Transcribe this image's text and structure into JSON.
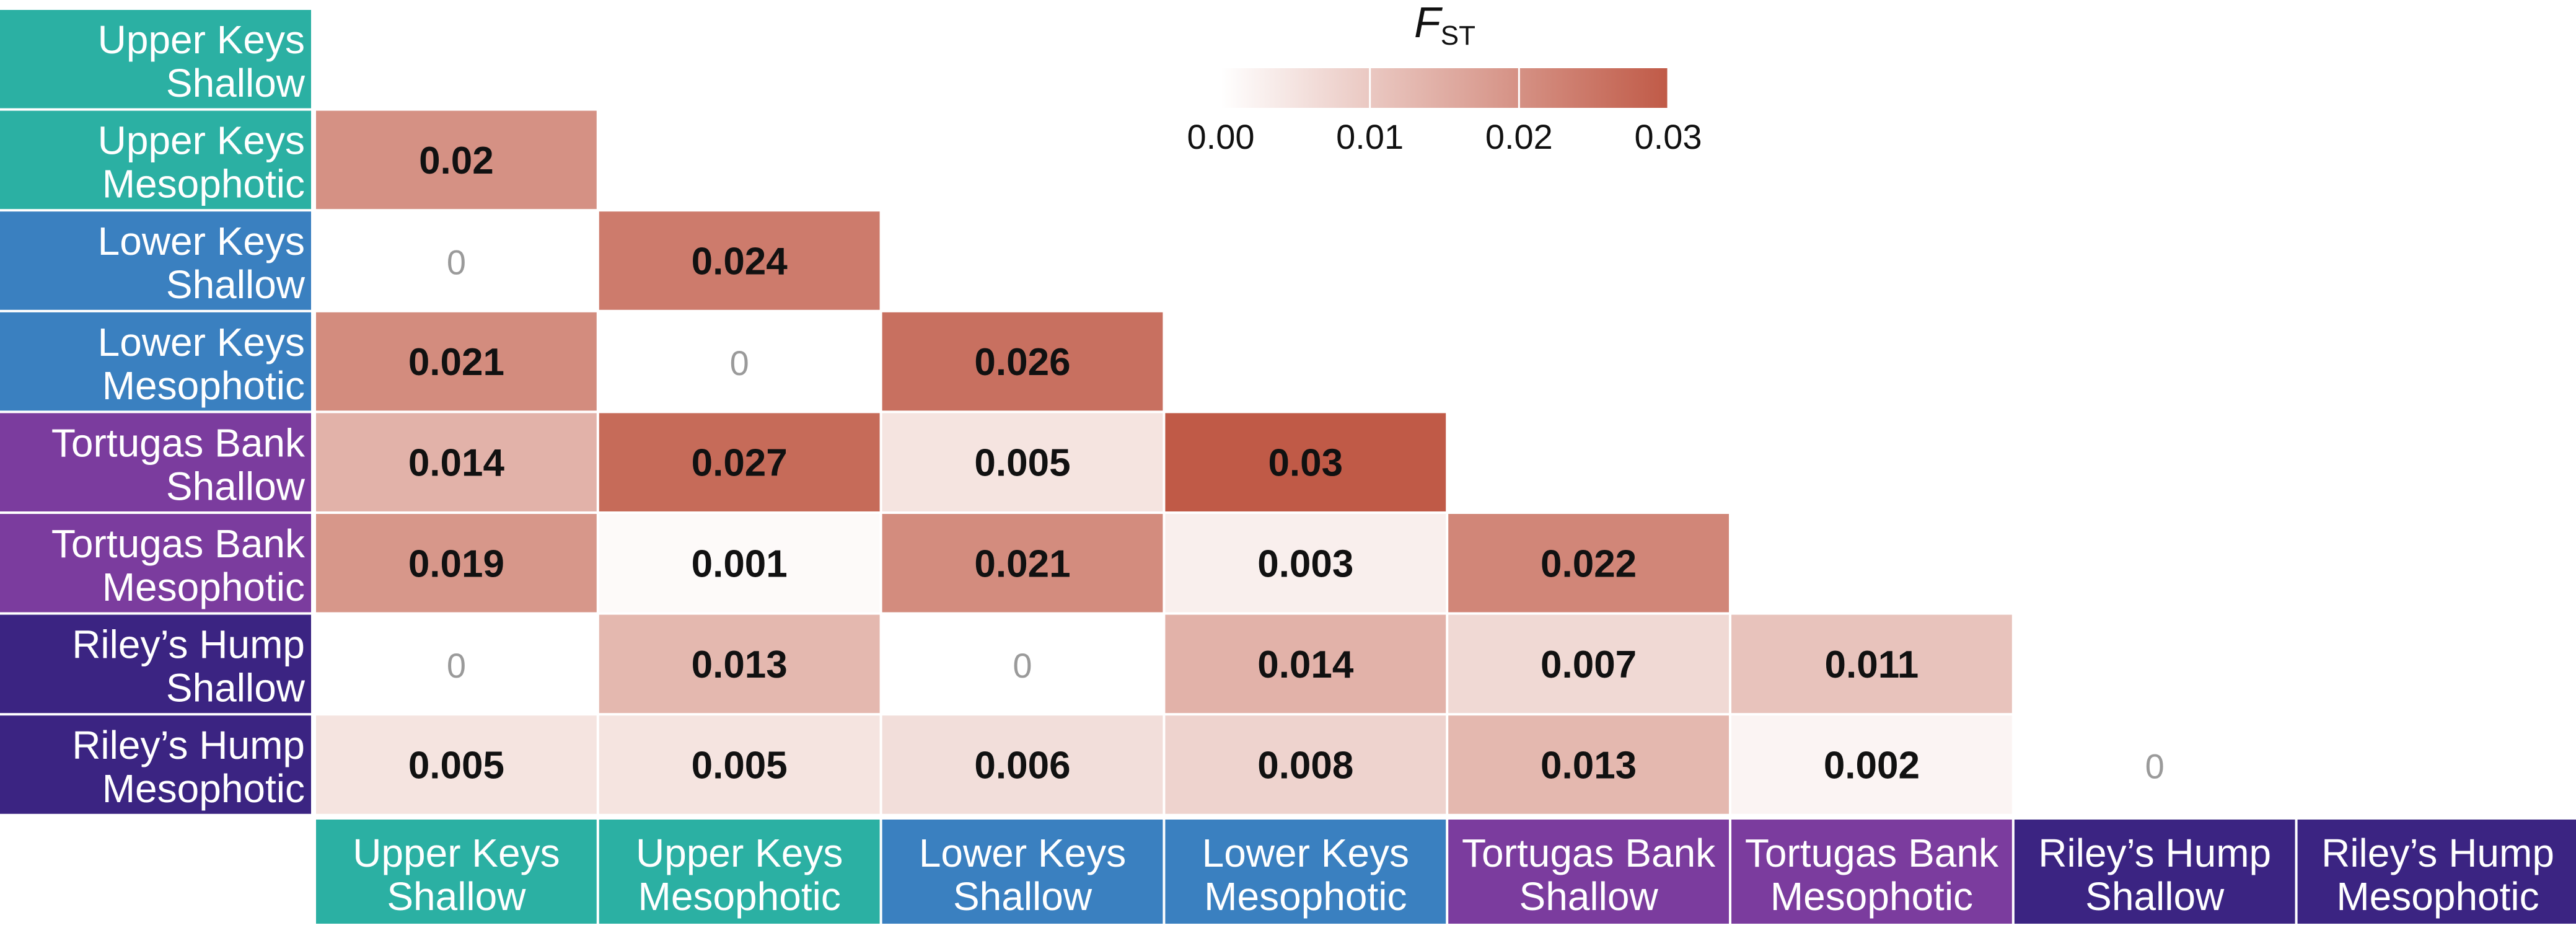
{
  "chart_data": {
    "type": "heatmap",
    "layout": "lower-triangle",
    "rows": [
      "Upper Keys Shallow",
      "Upper Keys Mesophotic",
      "Lower Keys Shallow",
      "Lower Keys Mesophotic",
      "Tortugas Bank Shallow",
      "Tortugas Bank Mesophotic",
      "Riley’s Hump Shallow",
      "Riley’s Hump Mesophotic"
    ],
    "columns": [
      "Upper Keys Shallow",
      "Upper Keys Mesophotic",
      "Lower Keys Shallow",
      "Lower Keys Mesophotic",
      "Tortugas Bank Shallow",
      "Tortugas Bank Mesophotic",
      "Riley’s Hump Shallow",
      "Riley’s Hump Mesophotic"
    ],
    "label_lines": [
      [
        "Upper Keys",
        "Shallow"
      ],
      [
        "Upper Keys",
        "Mesophotic"
      ],
      [
        "Lower Keys",
        "Shallow"
      ],
      [
        "Lower Keys",
        "Mesophotic"
      ],
      [
        "Tortugas Bank",
        "Shallow"
      ],
      [
        "Tortugas Bank",
        "Mesophotic"
      ],
      [
        "Riley’s Hump",
        "Shallow"
      ],
      [
        "Riley’s Hump",
        "Mesophotic"
      ]
    ],
    "cells": [
      {
        "row": 1,
        "col": 0,
        "label": "0.02",
        "value": 0.02
      },
      {
        "row": 2,
        "col": 0,
        "label": "0",
        "value": 0
      },
      {
        "row": 2,
        "col": 1,
        "label": "0.024",
        "value": 0.024
      },
      {
        "row": 3,
        "col": 0,
        "label": "0.021",
        "value": 0.021
      },
      {
        "row": 3,
        "col": 1,
        "label": "0",
        "value": 0
      },
      {
        "row": 3,
        "col": 2,
        "label": "0.026",
        "value": 0.026
      },
      {
        "row": 4,
        "col": 0,
        "label": "0.014",
        "value": 0.014
      },
      {
        "row": 4,
        "col": 1,
        "label": "0.027",
        "value": 0.027
      },
      {
        "row": 4,
        "col": 2,
        "label": "0.005",
        "value": 0.005
      },
      {
        "row": 4,
        "col": 3,
        "label": "0.03",
        "value": 0.03
      },
      {
        "row": 5,
        "col": 0,
        "label": "0.019",
        "value": 0.019
      },
      {
        "row": 5,
        "col": 1,
        "label": "0.001",
        "value": 0.001
      },
      {
        "row": 5,
        "col": 2,
        "label": "0.021",
        "value": 0.021
      },
      {
        "row": 5,
        "col": 3,
        "label": "0.003",
        "value": 0.003
      },
      {
        "row": 5,
        "col": 4,
        "label": "0.022",
        "value": 0.022
      },
      {
        "row": 6,
        "col": 0,
        "label": "0",
        "value": 0
      },
      {
        "row": 6,
        "col": 1,
        "label": "0.013",
        "value": 0.013
      },
      {
        "row": 6,
        "col": 2,
        "label": "0",
        "value": 0
      },
      {
        "row": 6,
        "col": 3,
        "label": "0.014",
        "value": 0.014
      },
      {
        "row": 6,
        "col": 4,
        "label": "0.007",
        "value": 0.007
      },
      {
        "row": 6,
        "col": 5,
        "label": "0.011",
        "value": 0.011
      },
      {
        "row": 7,
        "col": 0,
        "label": "0.005",
        "value": 0.005
      },
      {
        "row": 7,
        "col": 1,
        "label": "0.005",
        "value": 0.005
      },
      {
        "row": 7,
        "col": 2,
        "label": "0.006",
        "value": 0.006
      },
      {
        "row": 7,
        "col": 3,
        "label": "0.008",
        "value": 0.008
      },
      {
        "row": 7,
        "col": 4,
        "label": "0.013",
        "value": 0.013
      },
      {
        "row": 7,
        "col": 5,
        "label": "0.002",
        "value": 0.002
      },
      {
        "row": 7,
        "col": 6,
        "label": "0",
        "value": 0
      }
    ],
    "legend": {
      "title": "F",
      "title_subscript": "ST",
      "ticks": [
        "0.00",
        "0.01",
        "0.02",
        "0.03"
      ],
      "tick_values": [
        0,
        0.01,
        0.02,
        0.03
      ],
      "range": [
        0,
        0.03
      ],
      "placement": "top-center"
    },
    "colors": {
      "scale_low": "#ffffff",
      "scale_high": "#c05a47",
      "zero_text": "#9a9a9a",
      "value_text": "#111111",
      "group_upper_keys": "#2bb0a3",
      "group_lower_keys": "#3a80c0",
      "group_tortugas_bank": "#7b3c9e",
      "group_rileys_hump": "#3b2482"
    },
    "label_colors": [
      "#2bb0a3",
      "#2bb0a3",
      "#3a80c0",
      "#3a80c0",
      "#7b3c9e",
      "#7b3c9e",
      "#3b2482",
      "#3b2482"
    ]
  }
}
